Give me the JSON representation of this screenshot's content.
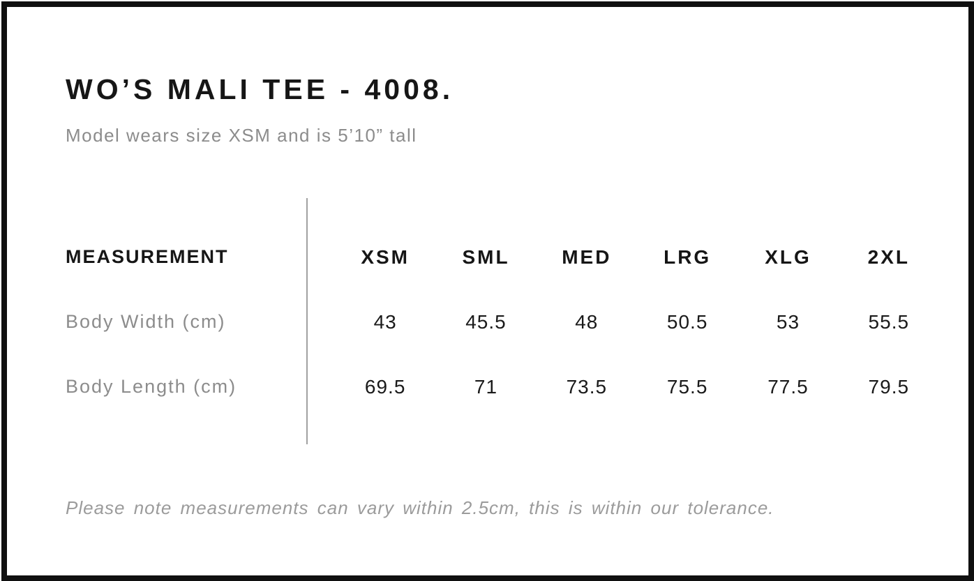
{
  "header": {
    "title": "WO’S MALI TEE - 4008.",
    "subtitle": "Model wears size XSM and is 5’10” tall"
  },
  "table": {
    "header": [
      "MEASUREMENT",
      "XSM",
      "SML",
      "MED",
      "LRG",
      "XLG",
      "2XL"
    ],
    "rows": [
      {
        "label": "Body Width (cm)",
        "values": [
          43,
          45.5,
          48,
          50.5,
          53,
          55.5
        ]
      },
      {
        "label": "Body Length (cm)",
        "values": [
          69.5,
          71,
          73.5,
          75.5,
          77.5,
          79.5
        ]
      }
    ]
  },
  "footer": {
    "note": "Please note measurements can vary within 2.5cm, this is within our tolerance."
  },
  "colors": {
    "text_primary": "#161616",
    "text_muted": "#8c8c8c",
    "divider": "#a1a1a1",
    "frame": "#101010"
  },
  "chart_data": {
    "type": "table",
    "title": "WO’S MALI TEE - 4008.",
    "subtitle": "Model wears size XSM and is 5’10” tall",
    "columns": [
      "MEASUREMENT",
      "XSM",
      "SML",
      "MED",
      "LRG",
      "XLG",
      "2XL"
    ],
    "rows": [
      {
        "label": "Body Width (cm)",
        "values": [
          43,
          45.5,
          48,
          50.5,
          53,
          55.5
        ]
      },
      {
        "label": "Body Length (cm)",
        "values": [
          69.5,
          71,
          73.5,
          75.5,
          77.5,
          79.5
        ]
      }
    ],
    "note": "Please note measurements can vary within 2.5cm, this is within our tolerance.",
    "layout": {
      "label_column_left": true,
      "vertical_divider_after_label": true,
      "grid": false
    }
  }
}
